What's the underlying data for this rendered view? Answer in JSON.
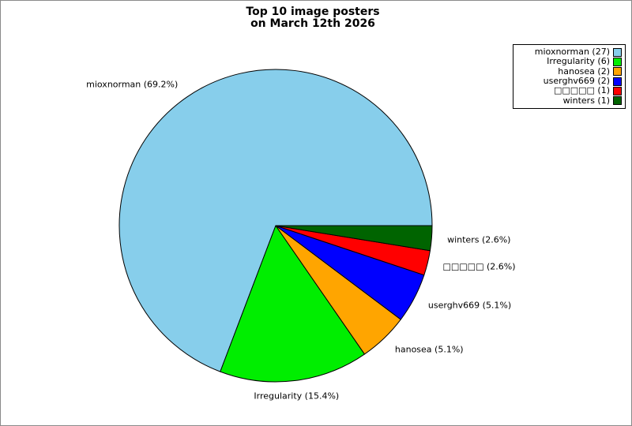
{
  "figure": {
    "title_line1": "Top 10 image posters",
    "title_line2": "on March 12th 2026",
    "background_color": "#ffffff",
    "border_color": "#8a8a8a"
  },
  "chart_data": {
    "type": "pie",
    "title": "Top 10 image posters on March 12th 2026",
    "total_count": 39,
    "start_angle_deg": 0,
    "direction": "counterclockwise",
    "edge_color": "#000000",
    "legend_position": "upper right",
    "label_distance": 1.1,
    "slices": [
      {
        "name": "mioxnorman",
        "count": 27,
        "percent": 69.2,
        "slice_label": "mioxnorman (69.2%)",
        "legend_label": "mioxnorman (27)",
        "color": "#87CEEB"
      },
      {
        "name": "Irregularity",
        "count": 6,
        "percent": 15.4,
        "slice_label": "Irregularity (15.4%)",
        "legend_label": "Irregularity (6)",
        "color": "#00EE00"
      },
      {
        "name": "hanosea",
        "count": 2,
        "percent": 5.1,
        "slice_label": "hanosea (5.1%)",
        "legend_label": "hanosea (2)",
        "color": "#FFA500"
      },
      {
        "name": "userghv669",
        "count": 2,
        "percent": 5.1,
        "slice_label": "userghv669 (5.1%)",
        "legend_label": "userghv669 (2)",
        "color": "#0000FF"
      },
      {
        "name": "□□□□□",
        "count": 1,
        "percent": 2.6,
        "slice_label": "□□□□□ (2.6%)",
        "legend_label": "□□□□□ (1)",
        "color": "#FF0000"
      },
      {
        "name": "winters",
        "count": 1,
        "percent": 2.6,
        "slice_label": "winters (2.6%)",
        "legend_label": "winters (1)",
        "color": "#006400"
      }
    ]
  }
}
